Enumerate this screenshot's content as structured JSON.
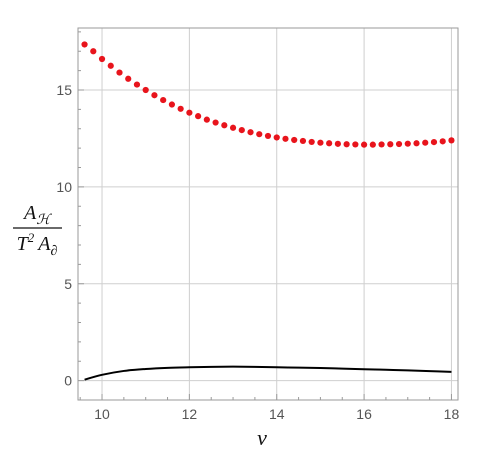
{
  "chart_data": {
    "type": "scatter",
    "title": "",
    "xlabel": "ν",
    "ylabel_frac": {
      "num_main": "A",
      "num_sub": "ℋ",
      "den_main": "T",
      "den_sup": "2",
      "den_main2": "A",
      "den_sub": "∂"
    },
    "xlim": [
      9.45,
      18.15
    ],
    "ylim": [
      -1.0,
      18.2
    ],
    "x_ticks": [
      10,
      12,
      14,
      16,
      18
    ],
    "x_tick_labels": [
      "10",
      "12",
      "14",
      "16",
      "18"
    ],
    "y_ticks": [
      0,
      5,
      10,
      15
    ],
    "y_tick_labels": [
      "0",
      "5",
      "10",
      "15"
    ],
    "grid": true,
    "legend": "none",
    "series": [
      {
        "style": "points",
        "color": "#e8141c",
        "x": [
          9.6,
          9.8,
          10.0,
          10.2,
          10.4,
          10.6,
          10.8,
          11.0,
          11.2,
          11.4,
          11.6,
          11.8,
          12.0,
          12.2,
          12.4,
          12.6,
          12.8,
          13.0,
          13.2,
          13.4,
          13.6,
          13.8,
          14.0,
          14.2,
          14.4,
          14.6,
          14.8,
          15.0,
          15.2,
          15.4,
          15.6,
          15.8,
          16.0,
          16.2,
          16.4,
          16.6,
          16.8,
          17.0,
          17.2,
          17.4,
          17.6,
          17.8,
          18.0
        ],
        "y": [
          17.35,
          17.0,
          16.6,
          16.25,
          15.9,
          15.58,
          15.28,
          15.0,
          14.73,
          14.48,
          14.25,
          14.03,
          13.83,
          13.65,
          13.47,
          13.32,
          13.18,
          13.05,
          12.93,
          12.82,
          12.72,
          12.63,
          12.55,
          12.48,
          12.42,
          12.37,
          12.32,
          12.28,
          12.25,
          12.22,
          12.2,
          12.19,
          12.18,
          12.18,
          12.19,
          12.2,
          12.21,
          12.23,
          12.25,
          12.28,
          12.31,
          12.35,
          12.4
        ]
      },
      {
        "style": "line",
        "color": "#000000",
        "x": [
          9.6,
          10.0,
          10.5,
          11.0,
          11.5,
          12.0,
          12.5,
          13.0,
          13.5,
          14.0,
          14.5,
          15.0,
          15.5,
          16.0,
          16.5,
          17.0,
          17.5,
          18.0
        ],
        "y": [
          0.05,
          0.3,
          0.5,
          0.6,
          0.66,
          0.69,
          0.71,
          0.72,
          0.71,
          0.69,
          0.67,
          0.65,
          0.62,
          0.59,
          0.56,
          0.53,
          0.49,
          0.45
        ]
      }
    ]
  }
}
